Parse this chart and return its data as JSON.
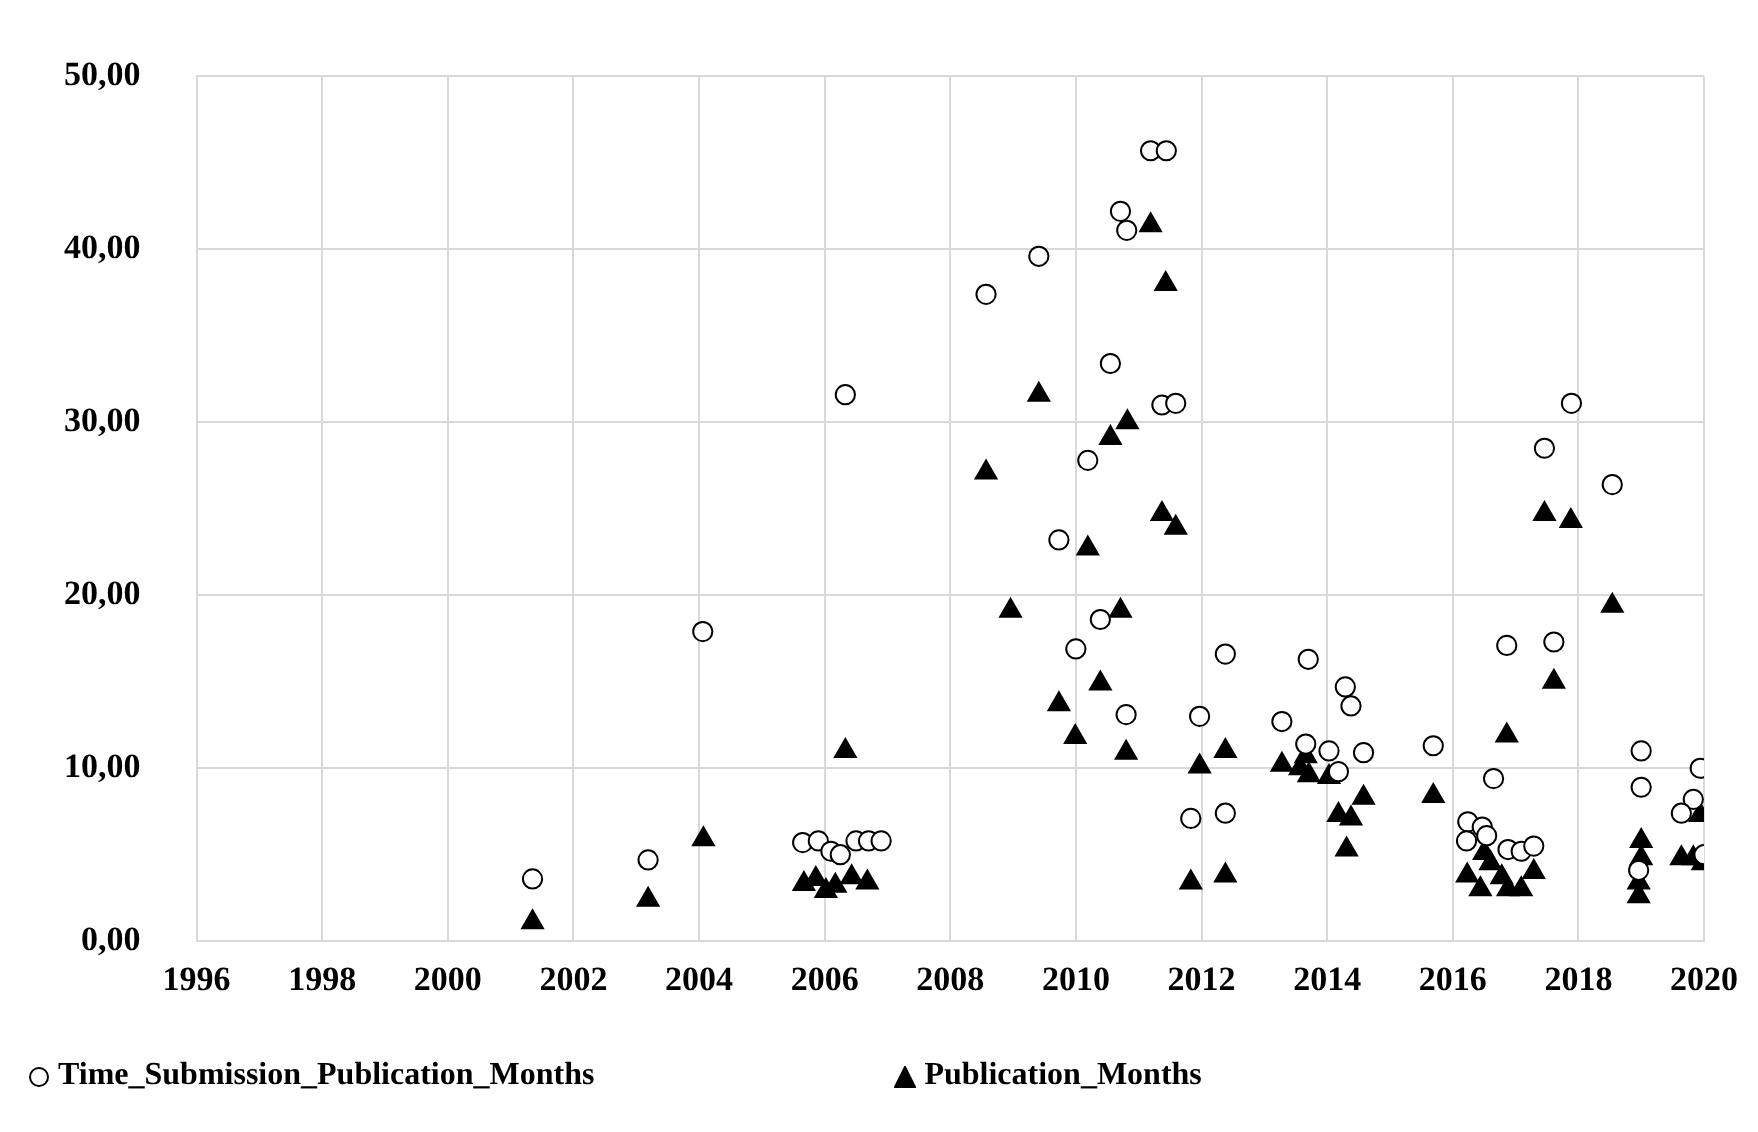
{
  "chart_data": {
    "type": "scatter",
    "xlim": [
      1996,
      2020
    ],
    "xticks": [
      1996,
      1998,
      2000,
      2002,
      2004,
      2006,
      2008,
      2010,
      2012,
      2014,
      2016,
      2018,
      2020
    ],
    "ylim": [
      0,
      50
    ],
    "yticks": [
      {
        "value": 0,
        "label": "0,00"
      },
      {
        "value": 10,
        "label": "10,00"
      },
      {
        "value": 20,
        "label": "20,00"
      },
      {
        "value": 30,
        "label": "30,00"
      },
      {
        "value": 40,
        "label": "40,00"
      },
      {
        "value": 50,
        "label": "50,00"
      }
    ],
    "grid": true,
    "legend": "bottom",
    "series": [
      {
        "name": "Time_Submission_Publication_Months",
        "color": "#000000",
        "marker": "circle",
        "x": [
          2001.35,
          2003.19,
          2004.06,
          2005.65,
          2005.9,
          2006.1,
          2006.25,
          2006.5,
          2006.7,
          2006.9,
          2006.33,
          2008.57,
          2009.41,
          2010.55,
          2010.71,
          2010.81,
          2011.19,
          2011.44,
          2011.37,
          2011.59,
          2010.19,
          2009.73,
          2010.39,
          2010.0,
          2010.8,
          2012.38,
          2011.97,
          2011.83,
          2012.38,
          2013.28,
          2013.7,
          2013.66,
          2014.03,
          2014.18,
          2014.29,
          2014.38,
          2014.58,
          2015.69,
          2016.65,
          2016.24,
          2016.22,
          2016.47,
          2016.54,
          2016.86,
          2016.88,
          2017.09,
          2017.29,
          2017.46,
          2017.61,
          2017.89,
          2018.54,
          2019.0,
          2019.0,
          2018.96,
          2019.94,
          2019.83,
          2019.64,
          2020.0
        ],
        "values": [
          3.6,
          4.7,
          17.9,
          5.7,
          5.8,
          5.2,
          5.0,
          5.8,
          5.8,
          5.8,
          31.6,
          37.4,
          39.6,
          33.4,
          42.2,
          41.1,
          45.7,
          45.7,
          31.0,
          31.1,
          27.8,
          23.2,
          18.6,
          16.9,
          13.1,
          16.6,
          13.0,
          7.1,
          7.4,
          12.7,
          16.3,
          11.4,
          11.0,
          9.8,
          14.7,
          13.6,
          10.9,
          11.3,
          9.4,
          6.9,
          5.8,
          6.6,
          6.1,
          17.1,
          5.3,
          5.2,
          5.5,
          28.5,
          17.3,
          31.1,
          26.4,
          11.0,
          8.9,
          4.1,
          10.0,
          8.2,
          7.4,
          5.0
        ]
      },
      {
        "name": "Publication_Months",
        "color": "#000000",
        "marker": "triangle",
        "x": [
          2001.35,
          2003.19,
          2004.07,
          2006.33,
          2005.67,
          2005.86,
          2006.02,
          2006.17,
          2006.43,
          2006.68,
          2008.57,
          2008.96,
          2009.41,
          2009.73,
          2009.99,
          2010.19,
          2010.39,
          2010.55,
          2010.82,
          2010.71,
          2010.8,
          2011.19,
          2011.43,
          2011.37,
          2011.59,
          2011.97,
          2012.38,
          2011.83,
          2012.38,
          2013.28,
          2013.57,
          2013.66,
          2013.71,
          2014.03,
          2014.18,
          2014.38,
          2014.31,
          2014.58,
          2015.69,
          2016.23,
          2016.44,
          2016.5,
          2016.6,
          2016.78,
          2016.86,
          2016.88,
          2017.09,
          2017.29,
          2017.46,
          2017.88,
          2017.61,
          2018.54,
          2019.0,
          2019.0,
          2018.96,
          2018.96,
          2019.64,
          2019.83,
          2019.94,
          2019.98
        ],
        "values": [
          1.1,
          2.4,
          5.9,
          11.0,
          3.3,
          3.6,
          2.9,
          3.2,
          3.7,
          3.4,
          27.1,
          19.1,
          31.6,
          13.7,
          11.8,
          22.7,
          14.9,
          29.1,
          30.0,
          19.1,
          10.9,
          41.4,
          38.0,
          24.7,
          23.9,
          10.1,
          11.0,
          3.4,
          3.8,
          10.2,
          10.0,
          10.7,
          9.6,
          9.5,
          7.3,
          7.1,
          5.3,
          8.3,
          8.4,
          3.8,
          3.0,
          5.1,
          4.5,
          3.7,
          11.9,
          3.0,
          3.0,
          4.0,
          24.7,
          24.3,
          15.0,
          19.4,
          5.8,
          4.8,
          3.4,
          2.6,
          4.8,
          4.8,
          7.3,
          4.5
        ]
      }
    ]
  }
}
